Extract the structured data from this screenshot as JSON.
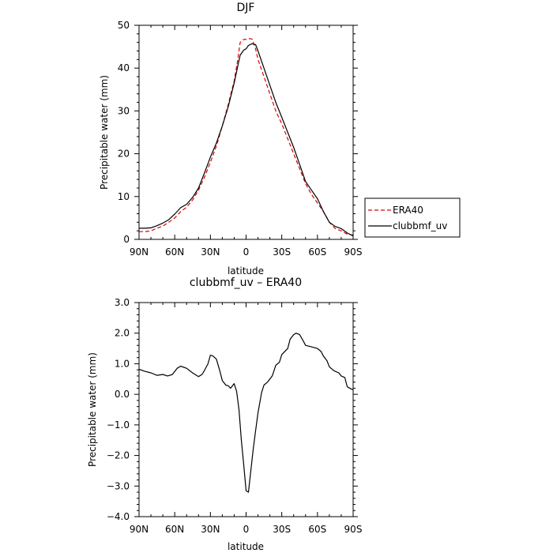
{
  "chart_data": [
    {
      "type": "line",
      "title": "DJF",
      "xlabel": "latitude",
      "ylabel": "Precipitable water  (mm)",
      "xlim": [
        90,
        -90
      ],
      "ylim": [
        0,
        50
      ],
      "x_ticks": [
        90,
        60,
        30,
        0,
        -30,
        -60,
        -90
      ],
      "x_tick_labels": [
        "90N",
        "60N",
        "30N",
        "0",
        "30S",
        "60S",
        "90S"
      ],
      "y_ticks": [
        0,
        10,
        20,
        30,
        40,
        50
      ],
      "y_tick_labels": [
        "0",
        "10",
        "20",
        "30",
        "40",
        "50"
      ],
      "grid": false,
      "legend": "right",
      "series": [
        {
          "name": "ERA40",
          "color": "#dd0000",
          "dash": "dashed",
          "x": [
            90,
            85,
            80,
            75,
            70,
            65,
            60,
            55,
            50,
            45,
            40,
            35,
            30,
            25,
            20,
            15,
            10,
            7,
            5,
            2,
            0,
            -2,
            -5,
            -8,
            -10,
            -15,
            -20,
            -25,
            -30,
            -35,
            -40,
            -45,
            -50,
            -55,
            -60,
            -65,
            -70,
            -75,
            -80,
            -85,
            -90
          ],
          "values": [
            1.8,
            1.8,
            2.0,
            2.6,
            3.1,
            4.0,
            5.0,
            6.5,
            7.5,
            9.2,
            11.5,
            14.5,
            18.0,
            21.8,
            26.5,
            31.5,
            37.0,
            42.0,
            46.0,
            46.7,
            46.7,
            46.9,
            46.8,
            44.5,
            42.0,
            38.0,
            34.0,
            30.0,
            27.0,
            23.5,
            20.0,
            16.5,
            13.0,
            10.5,
            8.5,
            6.5,
            4.0,
            2.5,
            2.0,
            1.2,
            1.0
          ]
        },
        {
          "name": "clubbmf_uv",
          "color": "#000000",
          "dash": "solid",
          "x": [
            90,
            85,
            80,
            75,
            70,
            65,
            60,
            55,
            50,
            45,
            40,
            35,
            30,
            25,
            20,
            15,
            10,
            7,
            5,
            2,
            0,
            -2,
            -5,
            -8,
            -10,
            -15,
            -20,
            -25,
            -30,
            -35,
            -40,
            -45,
            -50,
            -55,
            -60,
            -65,
            -70,
            -75,
            -80,
            -85,
            -90
          ],
          "values": [
            2.6,
            2.6,
            2.7,
            3.2,
            3.8,
            4.6,
            5.9,
            7.4,
            8.2,
            9.8,
            12.0,
            15.5,
            19.2,
            22.5,
            26.5,
            31.0,
            36.5,
            40.5,
            43.0,
            44.2,
            44.5,
            45.3,
            45.7,
            45.5,
            44.0,
            40.0,
            36.0,
            32.0,
            28.5,
            25.0,
            21.5,
            17.5,
            13.5,
            11.5,
            9.5,
            6.5,
            4.0,
            3.0,
            2.5,
            1.5,
            0.8
          ]
        }
      ]
    },
    {
      "type": "line",
      "title": "clubbmf_uv  –  ERA40",
      "xlabel": "latitude",
      "ylabel": "Precipitable water  (mm)",
      "xlim": [
        90,
        -90
      ],
      "ylim": [
        -4.0,
        3.0
      ],
      "x_ticks": [
        90,
        60,
        30,
        0,
        -30,
        -60,
        -90
      ],
      "x_tick_labels": [
        "90N",
        "60N",
        "30N",
        "0",
        "30S",
        "60S",
        "90S"
      ],
      "y_ticks": [
        -4,
        -3,
        -2,
        -1,
        0,
        1,
        2,
        3
      ],
      "y_tick_labels": [
        "−4.0",
        "−3.0",
        "−2.0",
        "−1.0",
        "0.0",
        "1.0",
        "2.0",
        "3.0"
      ],
      "grid": false,
      "series": [
        {
          "color": "#000000",
          "dash": "solid",
          "x": [
            90,
            85,
            80,
            75,
            70,
            66,
            62,
            58,
            55,
            50,
            45,
            40,
            37,
            35,
            32,
            30,
            28,
            25,
            22,
            20,
            17,
            15,
            13,
            10,
            8,
            6,
            4,
            2,
            0,
            -2,
            -4,
            -6,
            -8,
            -10,
            -13,
            -15,
            -18,
            -20,
            -22,
            -25,
            -28,
            -30,
            -33,
            -35,
            -37,
            -40,
            -42,
            -45,
            -48,
            -50,
            -55,
            -60,
            -63,
            -65,
            -68,
            -70,
            -73,
            -75,
            -78,
            -80,
            -83,
            -85,
            -88,
            -90
          ],
          "values": [
            0.82,
            0.75,
            0.7,
            0.62,
            0.65,
            0.6,
            0.65,
            0.85,
            0.92,
            0.85,
            0.7,
            0.58,
            0.65,
            0.78,
            1.0,
            1.28,
            1.26,
            1.15,
            0.75,
            0.45,
            0.3,
            0.28,
            0.2,
            0.35,
            0.1,
            -0.5,
            -1.5,
            -2.3,
            -3.15,
            -3.2,
            -2.5,
            -1.8,
            -1.2,
            -0.6,
            0.05,
            0.3,
            0.4,
            0.5,
            0.6,
            0.95,
            1.05,
            1.3,
            1.42,
            1.5,
            1.8,
            1.95,
            2.0,
            1.95,
            1.75,
            1.6,
            1.55,
            1.5,
            1.4,
            1.25,
            1.1,
            0.9,
            0.8,
            0.75,
            0.7,
            0.6,
            0.55,
            0.25,
            0.18,
            0.15
          ]
        }
      ]
    }
  ]
}
